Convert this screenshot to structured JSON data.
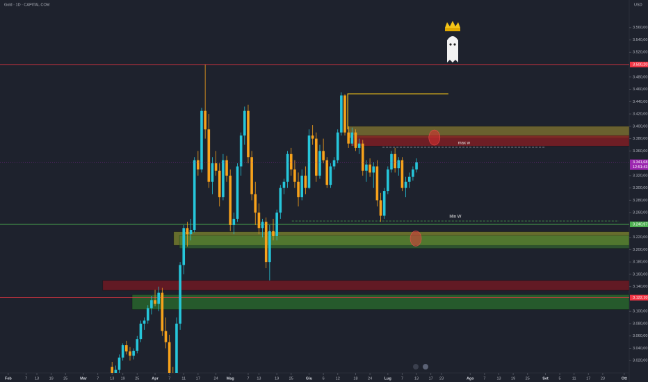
{
  "chart_data": {
    "type": "candlestick",
    "title": "Gold · 1D · CAPITAL.COM",
    "currency": "USD",
    "xlim": [
      -2.3,
      173.4
    ],
    "ylim": [
      3000,
      3604.8
    ],
    "yticks": [
      {
        "value": 3560,
        "label": "3.560,00"
      },
      {
        "value": 3540,
        "label": "3.540,00"
      },
      {
        "value": 3520,
        "label": "3.520,00"
      },
      {
        "value": 3480,
        "label": "3.480,00"
      },
      {
        "value": 3460,
        "label": "3.460,00"
      },
      {
        "value": 3440,
        "label": "3.440,00"
      },
      {
        "value": 3420,
        "label": "3.420,00"
      },
      {
        "value": 3400,
        "label": "3.400,00"
      },
      {
        "value": 3380,
        "label": "3.380,00"
      },
      {
        "value": 3360,
        "label": "3.360,00"
      },
      {
        "value": 3320,
        "label": "3.320,00"
      },
      {
        "value": 3300,
        "label": "3.300,00"
      },
      {
        "value": 3280,
        "label": "3.280,00"
      },
      {
        "value": 3260,
        "label": "3.260,00"
      },
      {
        "value": 3220,
        "label": "3.220,00"
      },
      {
        "value": 3200,
        "label": "3.200,00"
      },
      {
        "value": 3180,
        "label": "3.180,00"
      },
      {
        "value": 3160,
        "label": "3.160,00"
      },
      {
        "value": 3140,
        "label": "3.140,00"
      },
      {
        "value": 3100,
        "label": "3.100,00"
      },
      {
        "value": 3080,
        "label": "3.080,00"
      },
      {
        "value": 3060,
        "label": "3.060,00"
      },
      {
        "value": 3040,
        "label": "3.040,00"
      },
      {
        "value": 3020,
        "label": "3.020,00"
      }
    ],
    "xticks": [
      {
        "value": 0,
        "label": "Feb"
      },
      {
        "value": 5,
        "label": "7"
      },
      {
        "value": 8,
        "label": "13"
      },
      {
        "value": 12,
        "label": "19"
      },
      {
        "value": 16,
        "label": "25"
      },
      {
        "value": 21,
        "label": "Mar"
      },
      {
        "value": 25,
        "label": "7"
      },
      {
        "value": 29,
        "label": "13"
      },
      {
        "value": 32,
        "label": "19"
      },
      {
        "value": 36,
        "label": "25"
      },
      {
        "value": 41,
        "label": "Apr"
      },
      {
        "value": 45,
        "label": "7"
      },
      {
        "value": 49,
        "label": "11"
      },
      {
        "value": 53,
        "label": "17"
      },
      {
        "value": 58,
        "label": "24"
      },
      {
        "value": 62,
        "label": "Mag"
      },
      {
        "value": 67,
        "label": "7"
      },
      {
        "value": 70,
        "label": "13"
      },
      {
        "value": 75,
        "label": "19"
      },
      {
        "value": 79,
        "label": "25"
      },
      {
        "value": 84,
        "label": "Giu"
      },
      {
        "value": 88,
        "label": "6"
      },
      {
        "value": 92,
        "label": "12"
      },
      {
        "value": 97,
        "label": "18"
      },
      {
        "value": 101,
        "label": "24"
      },
      {
        "value": 106,
        "label": "Lug"
      },
      {
        "value": 110,
        "label": "7"
      },
      {
        "value": 114,
        "label": "13"
      },
      {
        "value": 118,
        "label": "17"
      },
      {
        "value": 121,
        "label": "23"
      },
      {
        "value": 129,
        "label": "Ago"
      },
      {
        "value": 133,
        "label": "7"
      },
      {
        "value": 137,
        "label": "13"
      },
      {
        "value": 141,
        "label": "19"
      },
      {
        "value": 145,
        "label": "25"
      },
      {
        "value": 150,
        "label": "Set"
      },
      {
        "value": 154,
        "label": "5"
      },
      {
        "value": 158,
        "label": "11"
      },
      {
        "value": 162,
        "label": "17"
      },
      {
        "value": 166,
        "label": "23"
      },
      {
        "value": 172,
        "label": "Ott"
      }
    ],
    "candles": {
      "up_color": "#26c6da",
      "down_color": "#f7a21b",
      "x": [
        29,
        30,
        31,
        32,
        33,
        34,
        35,
        36,
        37,
        38,
        39,
        40,
        41,
        42,
        43,
        44,
        45,
        46,
        47,
        48,
        49,
        50,
        51,
        52,
        53,
        54,
        55,
        56,
        57,
        58,
        59,
        60,
        61,
        62,
        63,
        64,
        65,
        66,
        67,
        68,
        69,
        70,
        71,
        72,
        73,
        74,
        75,
        76,
        77,
        78,
        79,
        80,
        81,
        82,
        83,
        84,
        85,
        86,
        87,
        88,
        89,
        90,
        91,
        92,
        93,
        94,
        95,
        96,
        97,
        98,
        99,
        100,
        101,
        102,
        103,
        104,
        105,
        106,
        107,
        108,
        109,
        110,
        111,
        112,
        113,
        114
      ],
      "open": [
        3010,
        2995,
        3005,
        3025,
        3045,
        3035,
        3028,
        3036,
        3055,
        3080,
        3085,
        3105,
        3118,
        3112,
        3130,
        3068,
        3050,
        3000,
        2980,
        3080,
        3175,
        3235,
        3225,
        3232,
        3345,
        3330,
        3425,
        3395,
        3310,
        3340,
        3328,
        3285,
        3345,
        3320,
        3240,
        3250,
        3335,
        3385,
        3425,
        3350,
        3290,
        3260,
        3235,
        3245,
        3180,
        3230,
        3222,
        3260,
        3300,
        3310,
        3355,
        3330,
        3310,
        3285,
        3320,
        3300,
        3385,
        3380,
        3320,
        3360,
        3345,
        3305,
        3335,
        3345,
        3390,
        3450,
        3390,
        3372,
        3390,
        3365,
        3372,
        3328,
        3338,
        3325,
        3335,
        3280,
        3255,
        3295,
        3330,
        3355,
        3332,
        3345,
        3300,
        3310,
        3318,
        3330
      ],
      "high": [
        3018,
        3012,
        3030,
        3048,
        3052,
        3042,
        3040,
        3060,
        3085,
        3090,
        3110,
        3125,
        3135,
        3140,
        3138,
        3090,
        3062,
        3010,
        3090,
        3180,
        3240,
        3245,
        3250,
        3350,
        3360,
        3430,
        3500,
        3420,
        3350,
        3360,
        3340,
        3355,
        3352,
        3330,
        3260,
        3340,
        3390,
        3432,
        3435,
        3360,
        3310,
        3275,
        3250,
        3252,
        3240,
        3250,
        3265,
        3305,
        3315,
        3360,
        3365,
        3345,
        3325,
        3330,
        3335,
        3395,
        3402,
        3390,
        3370,
        3380,
        3350,
        3340,
        3350,
        3395,
        3455,
        3452,
        3400,
        3398,
        3395,
        3380,
        3378,
        3345,
        3348,
        3342,
        3345,
        3292,
        3300,
        3335,
        3360,
        3365,
        3350,
        3350,
        3318,
        3325,
        3335,
        3348
      ],
      "low": [
        2990,
        2990,
        3000,
        3020,
        3030,
        3020,
        3022,
        3032,
        3050,
        3070,
        3080,
        3095,
        3108,
        3100,
        3060,
        3040,
        2995,
        2970,
        2975,
        3070,
        3160,
        3205,
        3215,
        3228,
        3320,
        3325,
        3380,
        3300,
        3290,
        3320,
        3270,
        3280,
        3310,
        3230,
        3225,
        3245,
        3320,
        3370,
        3340,
        3280,
        3240,
        3225,
        3220,
        3170,
        3150,
        3215,
        3215,
        3250,
        3290,
        3300,
        3320,
        3300,
        3270,
        3280,
        3290,
        3298,
        3370,
        3310,
        3315,
        3340,
        3300,
        3300,
        3330,
        3340,
        3385,
        3385,
        3365,
        3368,
        3360,
        3355,
        3320,
        3310,
        3318,
        3300,
        3270,
        3245,
        3250,
        3290,
        3325,
        3325,
        3320,
        3295,
        3285,
        3300,
        3312,
        3325
      ],
      "close": [
        2995,
        3005,
        3025,
        3045,
        3035,
        3028,
        3036,
        3055,
        3080,
        3085,
        3105,
        3118,
        3112,
        3130,
        3068,
        3050,
        3000,
        2980,
        3080,
        3175,
        3235,
        3225,
        3232,
        3345,
        3330,
        3425,
        3395,
        3310,
        3340,
        3328,
        3285,
        3345,
        3320,
        3240,
        3250,
        3335,
        3385,
        3425,
        3350,
        3290,
        3260,
        3235,
        3245,
        3180,
        3230,
        3222,
        3260,
        3300,
        3310,
        3355,
        3330,
        3310,
        3285,
        3320,
        3300,
        3385,
        3380,
        3320,
        3360,
        3345,
        3305,
        3335,
        3345,
        3390,
        3450,
        3390,
        3372,
        3390,
        3365,
        3372,
        3328,
        3338,
        3325,
        3335,
        3280,
        3255,
        3295,
        3330,
        3355,
        3332,
        3345,
        3300,
        3310,
        3318,
        3330,
        3341.68
      ]
    },
    "zones": [
      {
        "from": 94.8,
        "high": 3400,
        "low": 3381,
        "color": "rgba(170,150,50,0.55)"
      },
      {
        "from": 95.7,
        "high": 3385,
        "low": 3368,
        "color": "rgba(130,30,35,0.8)"
      },
      {
        "from": 46.2,
        "high": 3229,
        "low": 3207,
        "color": "rgba(150,160,45,0.6)"
      },
      {
        "from": 47.8,
        "high": 3223,
        "low": 3202,
        "color": "rgba(60,130,50,0.5)"
      },
      {
        "from": 26.4,
        "high": 3150,
        "low": 3134,
        "color": "rgba(110,25,35,0.85)"
      },
      {
        "from": 34.6,
        "high": 3127,
        "low": 3103,
        "color": "rgba(40,100,45,0.85)"
      }
    ],
    "levels": [
      {
        "value": 3500.2,
        "label": "3.500,20",
        "color": "#f23645"
      },
      {
        "value": 3240.97,
        "label": "3.240,97",
        "color": "#4caf50"
      },
      {
        "value": 3122.1,
        "label": "3.122,10",
        "color": "#f23645"
      }
    ],
    "last_price": {
      "value": 3341.68,
      "label": "3.341,68",
      "countdown": "12:51:43",
      "color": "#9c27b0"
    },
    "trendline": {
      "x": [
        94.8,
        94.8,
        122.9
      ],
      "y": [
        3395,
        3452.7,
        3452.7
      ],
      "color": "#f5c518"
    },
    "dashed": [
      {
        "from": 104.5,
        "to": 150,
        "value": 3366,
        "color": "#9aa0aa",
        "label": "max w"
      },
      {
        "from": 79.2,
        "to": 170.5,
        "value": 3246.5,
        "color": "#4caf50",
        "label": "Min W"
      }
    ],
    "circles": [
      {
        "x": 119,
        "y": 3381.7,
        "color": "rgba(220,50,50,0.55)"
      },
      {
        "x": 113.8,
        "y": 3218,
        "color": "rgba(220,60,60,0.55)"
      }
    ]
  }
}
